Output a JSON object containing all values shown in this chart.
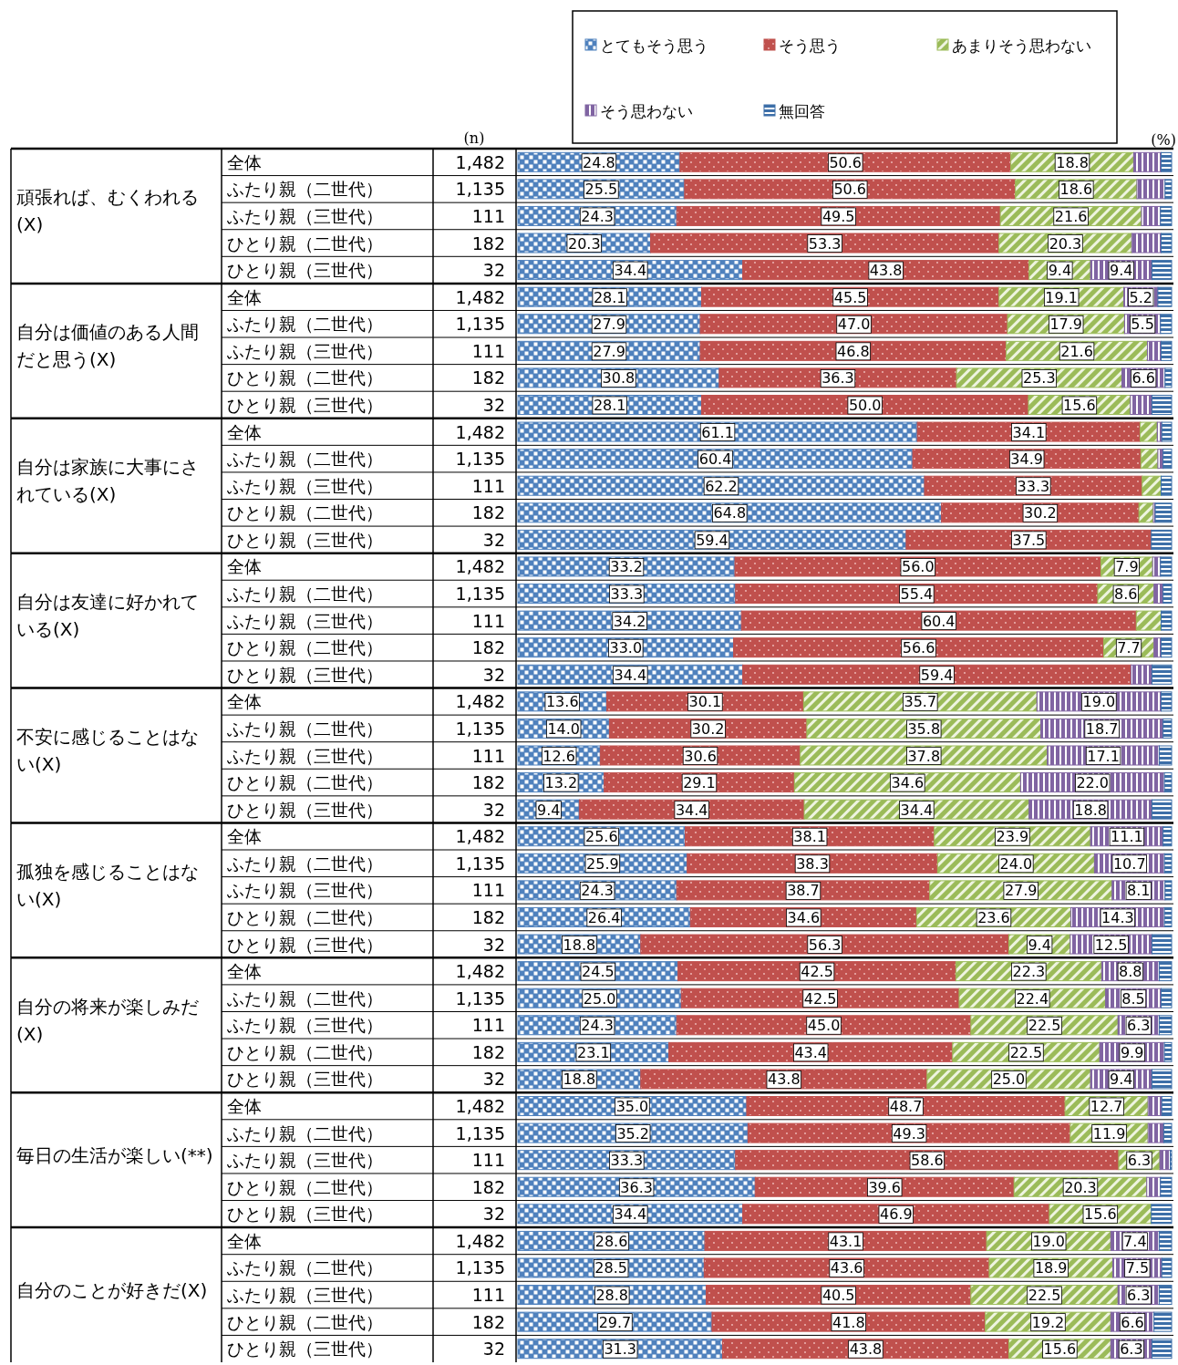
{
  "chart_data": [
    {
      "type": "bar",
      "orientation": "horizontal",
      "stacked": true,
      "title": "頑張れば、むくわれる(X)",
      "categories": [
        "全体",
        "ふたり親（二世代）",
        "ふたり親（三世代）",
        "ひとり親（二世代）",
        "ひとり親（三世代）"
      ],
      "y2_categories": [
        "1,482",
        "1,135",
        "111",
        "182",
        "32"
      ],
      "xlim": [
        0,
        100
      ],
      "legend": "top",
      "annotations": [
        "(n)",
        "(%)"
      ],
      "series": [
        {
          "name": "とてもそう思う",
          "color": "#4f81bd",
          "values": [
            24.8,
            25.5,
            24.3,
            20.3,
            34.4
          ],
          "value_labels": [
            "24.8",
            "25.5",
            "24.3",
            "20.3",
            "34.4"
          ]
        },
        {
          "name": "そう思う",
          "color": "#c0504d",
          "values": [
            50.6,
            50.6,
            49.5,
            53.3,
            43.8
          ],
          "value_labels": [
            "50.6",
            "50.6",
            "49.5",
            "53.3",
            "43.8"
          ]
        },
        {
          "name": "あまりそう思わない",
          "color": "#9bbb59",
          "values": [
            18.8,
            18.6,
            21.6,
            20.3,
            9.4
          ],
          "value_labels": [
            "18.8",
            "18.6",
            "21.6",
            "20.3",
            "9.4"
          ]
        },
        {
          "name": "そう思わない",
          "color": "#8064a2",
          "values": [
            4.2,
            4.3,
            2.9,
            4.5,
            9.4
          ],
          "value_labels": [
            null,
            null,
            null,
            null,
            "9.4"
          ]
        },
        {
          "name": "無回答",
          "color": "#3d6fa8",
          "values": [
            1.6,
            1.0,
            1.7,
            1.6,
            3.0
          ]
        }
      ]
    },
    {
      "type": "bar",
      "orientation": "horizontal",
      "stacked": true,
      "title": "自分は価値のある人間だと思う(X)",
      "categories": [
        "全体",
        "ふたり親（二世代）",
        "ふたり親（三世代）",
        "ひとり親（二世代）",
        "ひとり親（三世代）"
      ],
      "y2_categories": [
        "1,482",
        "1,135",
        "111",
        "182",
        "32"
      ],
      "xlim": [
        0,
        100
      ],
      "series": [
        {
          "color": "#4f81bd",
          "values": [
            28.1,
            27.9,
            27.9,
            30.8,
            28.1
          ],
          "value_labels": [
            "28.1",
            "27.9",
            "27.9",
            "30.8",
            "28.1"
          ]
        },
        {
          "color": "#c0504d",
          "values": [
            45.5,
            47.0,
            46.8,
            36.3,
            50.0
          ],
          "value_labels": [
            "45.5",
            "47.0",
            "46.8",
            "36.3",
            "50.0"
          ]
        },
        {
          "color": "#9bbb59",
          "values": [
            19.1,
            17.9,
            21.6,
            25.3,
            15.6
          ],
          "value_labels": [
            "19.1",
            "17.9",
            "21.6",
            "25.3",
            "15.6"
          ]
        },
        {
          "color": "#8064a2",
          "values": [
            5.2,
            5.5,
            2.1,
            6.6,
            3.3
          ],
          "value_labels": [
            "5.2",
            "5.5",
            null,
            "6.6",
            null
          ]
        },
        {
          "color": "#3d6fa8",
          "values": [
            2.1,
            1.7,
            1.6,
            1.0,
            3.0
          ]
        }
      ]
    },
    {
      "type": "bar",
      "orientation": "horizontal",
      "stacked": true,
      "title": "自分は家族に大事にされている(X)",
      "categories": [
        "全体",
        "ふたり親（二世代）",
        "ふたり親（三世代）",
        "ひとり親（二世代）",
        "ひとり親（三世代）"
      ],
      "y2_categories": [
        "1,482",
        "1,135",
        "111",
        "182",
        "32"
      ],
      "xlim": [
        0,
        100
      ],
      "series": [
        {
          "color": "#4f81bd",
          "values": [
            61.1,
            60.4,
            62.2,
            64.8,
            59.4
          ],
          "value_labels": [
            "61.1",
            "60.4",
            "62.2",
            "64.8",
            "59.4"
          ]
        },
        {
          "color": "#c0504d",
          "values": [
            34.1,
            34.9,
            33.3,
            30.2,
            37.5
          ],
          "value_labels": [
            "34.1",
            "34.9",
            "33.3",
            "30.2",
            "37.5"
          ]
        },
        {
          "color": "#9bbb59",
          "values": [
            2.6,
            2.6,
            2.9,
            2.2,
            0.0
          ]
        },
        {
          "color": "#8064a2",
          "values": [
            0.7,
            0.8,
            0.0,
            0.3,
            0.0
          ]
        },
        {
          "color": "#3d6fa8",
          "values": [
            1.5,
            1.3,
            1.6,
            2.5,
            3.1
          ]
        }
      ]
    },
    {
      "type": "bar",
      "orientation": "horizontal",
      "stacked": true,
      "title": "自分は友達に好かれている(X)",
      "categories": [
        "全体",
        "ふたり親（二世代）",
        "ふたり親（三世代）",
        "ひとり親（二世代）",
        "ひとり親（三世代）"
      ],
      "y2_categories": [
        "1,482",
        "1,135",
        "111",
        "182",
        "32"
      ],
      "xlim": [
        0,
        100
      ],
      "series": [
        {
          "color": "#4f81bd",
          "values": [
            33.2,
            33.3,
            34.2,
            33.0,
            34.4
          ],
          "value_labels": [
            "33.2",
            "33.3",
            "34.2",
            "33.0",
            "34.4"
          ]
        },
        {
          "color": "#c0504d",
          "values": [
            56.0,
            55.4,
            60.4,
            56.6,
            59.4
          ],
          "value_labels": [
            "56.0",
            "55.4",
            "60.4",
            "56.6",
            "59.4"
          ]
        },
        {
          "color": "#9bbb59",
          "values": [
            7.9,
            8.6,
            3.8,
            7.7,
            0.0
          ],
          "value_labels": [
            "7.9",
            "8.6",
            null,
            "7.7",
            null
          ]
        },
        {
          "color": "#8064a2",
          "values": [
            1.2,
            1.4,
            0.0,
            1.1,
            3.2
          ]
        },
        {
          "color": "#3d6fa8",
          "values": [
            1.7,
            1.3,
            1.6,
            1.6,
            3.0
          ]
        }
      ]
    },
    {
      "type": "bar",
      "orientation": "horizontal",
      "stacked": true,
      "title": "不安に感じることはない(X)",
      "categories": [
        "全体",
        "ふたり親（二世代）",
        "ふたり親（三世代）",
        "ひとり親（二世代）",
        "ひとり親（三世代）"
      ],
      "y2_categories": [
        "1,482",
        "1,135",
        "111",
        "182",
        "32"
      ],
      "xlim": [
        0,
        100
      ],
      "series": [
        {
          "color": "#4f81bd",
          "values": [
            13.6,
            14.0,
            12.6,
            13.2,
            9.4
          ],
          "value_labels": [
            "13.6",
            "14.0",
            "12.6",
            "13.2",
            "9.4"
          ]
        },
        {
          "color": "#c0504d",
          "values": [
            30.1,
            30.2,
            30.6,
            29.1,
            34.4
          ],
          "value_labels": [
            "30.1",
            "30.2",
            "30.6",
            "29.1",
            "34.4"
          ]
        },
        {
          "color": "#9bbb59",
          "values": [
            35.7,
            35.8,
            37.8,
            34.6,
            34.4
          ],
          "value_labels": [
            "35.7",
            "35.8",
            "37.8",
            "34.6",
            "34.4"
          ]
        },
        {
          "color": "#8064a2",
          "values": [
            19.0,
            18.7,
            17.1,
            22.0,
            18.8
          ],
          "value_labels": [
            "19.0",
            "18.7",
            "17.1",
            "22.0",
            "18.8"
          ]
        },
        {
          "color": "#3d6fa8",
          "values": [
            1.6,
            1.3,
            1.9,
            1.1,
            3.0
          ]
        }
      ]
    },
    {
      "type": "bar",
      "orientation": "horizontal",
      "stacked": true,
      "title": "孤独を感じることはない(X)",
      "categories": [
        "全体",
        "ふたり親（二世代）",
        "ふたり親（三世代）",
        "ひとり親（二世代）",
        "ひとり親（三世代）"
      ],
      "y2_categories": [
        "1,482",
        "1,135",
        "111",
        "182",
        "32"
      ],
      "xlim": [
        0,
        100
      ],
      "series": [
        {
          "color": "#4f81bd",
          "values": [
            25.6,
            25.9,
            24.3,
            26.4,
            18.8
          ],
          "value_labels": [
            "25.6",
            "25.9",
            "24.3",
            "26.4",
            "18.8"
          ]
        },
        {
          "color": "#c0504d",
          "values": [
            38.1,
            38.3,
            38.7,
            34.6,
            56.3
          ],
          "value_labels": [
            "38.1",
            "38.3",
            "38.7",
            "34.6",
            "56.3"
          ]
        },
        {
          "color": "#9bbb59",
          "values": [
            23.9,
            24.0,
            27.9,
            23.6,
            9.4
          ],
          "value_labels": [
            "23.9",
            "24.0",
            "27.9",
            "23.6",
            "9.4"
          ]
        },
        {
          "color": "#8064a2",
          "values": [
            11.1,
            10.7,
            8.1,
            14.3,
            12.5
          ],
          "value_labels": [
            "11.1",
            "10.7",
            "8.1",
            "14.3",
            "12.5"
          ]
        },
        {
          "color": "#3d6fa8",
          "values": [
            1.3,
            1.1,
            1.0,
            1.1,
            3.0
          ]
        }
      ]
    },
    {
      "type": "bar",
      "orientation": "horizontal",
      "stacked": true,
      "title": "自分の将来が楽しみだ(X)",
      "categories": [
        "全体",
        "ふたり親（二世代）",
        "ふたり親（三世代）",
        "ひとり親（二世代）",
        "ひとり親（三世代）"
      ],
      "y2_categories": [
        "1,482",
        "1,135",
        "111",
        "182",
        "32"
      ],
      "xlim": [
        0,
        100
      ],
      "series": [
        {
          "color": "#4f81bd",
          "values": [
            24.5,
            25.0,
            24.3,
            23.1,
            18.8
          ],
          "value_labels": [
            "24.5",
            "25.0",
            "24.3",
            "23.1",
            "18.8"
          ]
        },
        {
          "color": "#c0504d",
          "values": [
            42.5,
            42.5,
            45.0,
            43.4,
            43.8
          ],
          "value_labels": [
            "42.5",
            "42.5",
            "45.0",
            "43.4",
            "43.8"
          ]
        },
        {
          "color": "#9bbb59",
          "values": [
            22.3,
            22.4,
            22.5,
            22.5,
            25.0
          ],
          "value_labels": [
            "22.3",
            "22.4",
            "22.5",
            "22.5",
            "25.0"
          ]
        },
        {
          "color": "#8064a2",
          "values": [
            8.8,
            8.5,
            6.3,
            9.9,
            9.4
          ],
          "value_labels": [
            "8.8",
            "8.5",
            "6.3",
            "9.9",
            "9.4"
          ]
        },
        {
          "color": "#3d6fa8",
          "values": [
            1.9,
            1.6,
            1.9,
            1.1,
            3.0
          ]
        }
      ]
    },
    {
      "type": "bar",
      "orientation": "horizontal",
      "stacked": true,
      "title": "毎日の生活が楽しい(**)",
      "categories": [
        "全体",
        "ふたり親（二世代）",
        "ふたり親（三世代）",
        "ひとり親（二世代）",
        "ひとり親（三世代）"
      ],
      "y2_categories": [
        "1,482",
        "1,135",
        "111",
        "182",
        "32"
      ],
      "xlim": [
        0,
        100
      ],
      "series": [
        {
          "color": "#4f81bd",
          "values": [
            35.0,
            35.2,
            33.3,
            36.3,
            34.4
          ],
          "value_labels": [
            "35.0",
            "35.2",
            "33.3",
            "36.3",
            "34.4"
          ]
        },
        {
          "color": "#c0504d",
          "values": [
            48.7,
            49.3,
            58.6,
            39.6,
            46.9
          ],
          "value_labels": [
            "48.7",
            "49.3",
            "58.6",
            "39.6",
            "46.9"
          ]
        },
        {
          "color": "#9bbb59",
          "values": [
            12.7,
            11.9,
            6.3,
            20.3,
            15.6
          ],
          "value_labels": [
            "12.7",
            "11.9",
            "6.3",
            "20.3",
            "15.6"
          ]
        },
        {
          "color": "#8064a2",
          "values": [
            2.1,
            2.4,
            1.6,
            2.1,
            0.0
          ]
        },
        {
          "color": "#3d6fa8",
          "values": [
            1.5,
            1.2,
            0.2,
            1.7,
            3.1
          ]
        }
      ]
    },
    {
      "type": "bar",
      "orientation": "horizontal",
      "stacked": true,
      "title": "自分のことが好きだ(X)",
      "categories": [
        "全体",
        "ふたり親（二世代）",
        "ふたり親（三世代）",
        "ひとり親（二世代）",
        "ひとり親（三世代）"
      ],
      "y2_categories": [
        "1,482",
        "1,135",
        "111",
        "182",
        "32"
      ],
      "xlim": [
        0,
        100
      ],
      "series": [
        {
          "color": "#4f81bd",
          "values": [
            28.6,
            28.5,
            28.8,
            29.7,
            31.3
          ],
          "value_labels": [
            "28.6",
            "28.5",
            "28.8",
            "29.7",
            "31.3"
          ]
        },
        {
          "color": "#c0504d",
          "values": [
            43.1,
            43.6,
            40.5,
            41.8,
            43.8
          ],
          "value_labels": [
            "43.1",
            "43.6",
            "40.5",
            "41.8",
            "43.8"
          ]
        },
        {
          "color": "#9bbb59",
          "values": [
            19.0,
            18.9,
            22.5,
            19.2,
            15.6
          ],
          "value_labels": [
            "19.0",
            "18.9",
            "22.5",
            "19.2",
            "15.6"
          ]
        },
        {
          "color": "#8064a2",
          "values": [
            7.4,
            7.5,
            6.3,
            6.6,
            6.3
          ],
          "value_labels": [
            "7.4",
            "7.5",
            "6.3",
            "6.6",
            "6.3"
          ]
        },
        {
          "color": "#3d6fa8",
          "values": [
            1.9,
            1.5,
            1.9,
            2.7,
            3.0
          ]
        }
      ]
    }
  ]
}
